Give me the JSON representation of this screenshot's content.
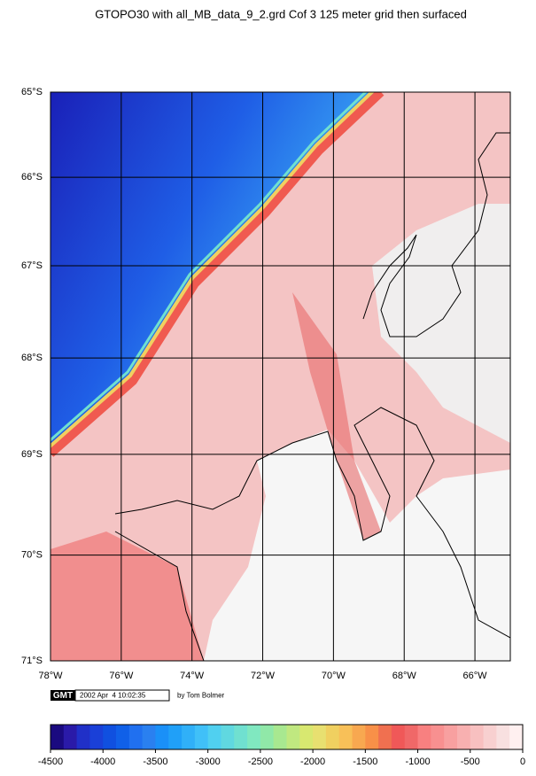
{
  "title": "GTOPO30 with all_MB_data_9_2.grd Cof 3 125 meter grid then surfaced",
  "map": {
    "lon_range": [
      -78,
      -65
    ],
    "lat_range": [
      -71,
      -65
    ],
    "lat_ticks": [
      {
        "value": -65,
        "label": "65°S"
      },
      {
        "value": -66,
        "label": "66°S"
      },
      {
        "value": -67,
        "label": "67°S"
      },
      {
        "value": -68,
        "label": "68°S"
      },
      {
        "value": -69,
        "label": "69°S"
      },
      {
        "value": -70,
        "label": "70°S"
      },
      {
        "value": -71,
        "label": "71°S"
      }
    ],
    "lon_ticks": [
      {
        "value": -78,
        "label": "78°W"
      },
      {
        "value": -76,
        "label": "76°W"
      },
      {
        "value": -74,
        "label": "74°W"
      },
      {
        "value": -72,
        "label": "72°W"
      },
      {
        "value": -70,
        "label": "70°W"
      },
      {
        "value": -68,
        "label": "68°W"
      },
      {
        "value": -66,
        "label": "66°W"
      }
    ]
  },
  "stamp": {
    "logo": "GMT",
    "time": "2002 Apr  4 10:02:35",
    "author": "by Tom Bolmer"
  },
  "colorbar": {
    "range": [
      -4500,
      0
    ],
    "ticks": [
      -4500,
      -4000,
      -3500,
      -3000,
      -2500,
      -2000,
      -1500,
      -1000,
      -500,
      0
    ],
    "colors": [
      "#1a0a80",
      "#2a1aa8",
      "#2030c8",
      "#1a40d8",
      "#1050e0",
      "#1060e8",
      "#2070f0",
      "#2a80f0",
      "#1a90f8",
      "#20a0f8",
      "#30b0f8",
      "#40c0f8",
      "#50d0f0",
      "#60d8e0",
      "#70e0d0",
      "#80e8c0",
      "#90e8a8",
      "#a8e890",
      "#c0e880",
      "#d8e870",
      "#e8e070",
      "#f0d060",
      "#f8c058",
      "#f8a850",
      "#f89048",
      "#f07050",
      "#f05858",
      "#f06868",
      "#f88080",
      "#f89090",
      "#f8a0a0",
      "#f8b0b0",
      "#f8c0c0",
      "#f8d0d0",
      "#f8e0e0",
      "#fff0f0"
    ]
  }
}
